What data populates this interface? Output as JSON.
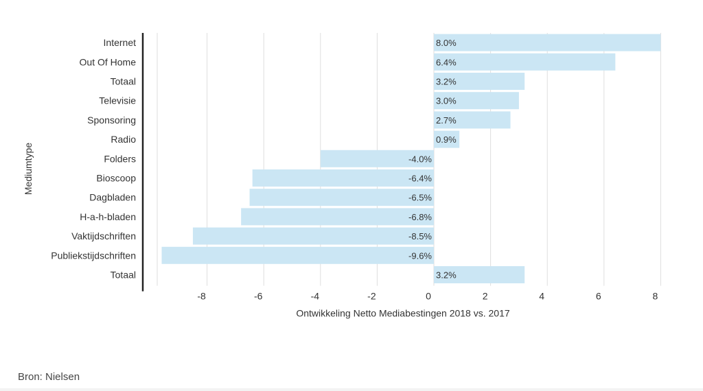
{
  "chart_data": {
    "type": "bar",
    "orientation": "horizontal",
    "title": "",
    "xlabel": "Ontwikkeling Netto Mediabestingen 2018 vs. 2017",
    "ylabel": "Mediumtype",
    "categories": [
      "Internet",
      "Out Of Home",
      "Totaal",
      "Televisie",
      "Sponsoring",
      "Radio",
      "Folders",
      "Bioscoop",
      "Dagbladen",
      "H-a-h-bladen",
      "Vaktijdschriften",
      "Publiekstijdschriften",
      "Totaal"
    ],
    "values": [
      8.0,
      6.4,
      3.2,
      3.0,
      2.7,
      0.9,
      -4.0,
      -6.4,
      -6.5,
      -6.8,
      -8.5,
      -9.6,
      3.2
    ],
    "data_labels": [
      "8.0%",
      "6.4%",
      "3.2%",
      "3.0%",
      "2.7%",
      "0.9%",
      "-4.0%",
      "-6.4%",
      "-6.5%",
      "-6.8%",
      "-8.5%",
      "-9.6%",
      "3.2%"
    ],
    "xticks": [
      -8,
      -6,
      -4,
      -2,
      0,
      2,
      4,
      6,
      8
    ],
    "xlim": [
      -10,
      8
    ],
    "grid": "vertical",
    "bar_color": "#cbe6f4"
  },
  "source": "Bron: Nielsen"
}
